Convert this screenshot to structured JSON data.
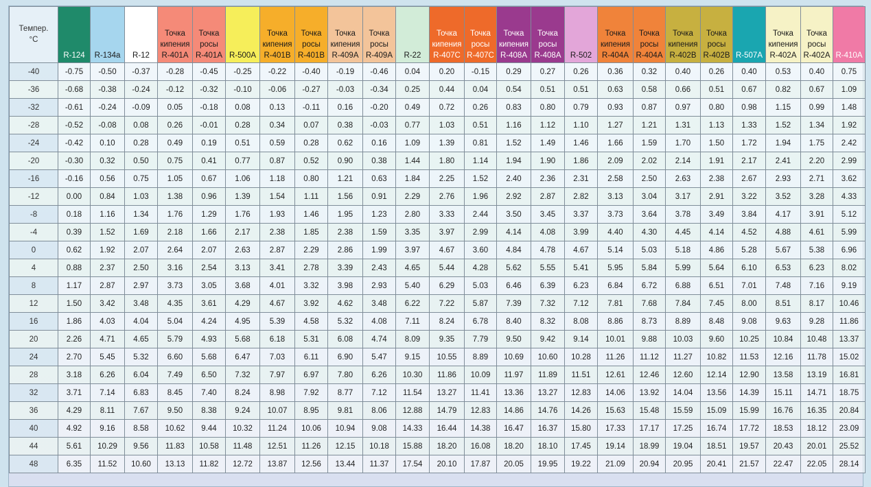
{
  "table": {
    "temp_header": "Темпер.\n°C",
    "columns": [
      {
        "label": "R-124",
        "color": "#1f8a6a",
        "dark": true
      },
      {
        "label": "R-134a",
        "color": "#a6d6ee",
        "dark": false
      },
      {
        "label": "R-12",
        "color": "#ffffff",
        "dark": false
      },
      {
        "label": "Точка\nкипения\nR-401A",
        "color": "#f58a78",
        "dark": false
      },
      {
        "label": "Точка\nросы\nR-401A",
        "color": "#f58a78",
        "dark": false
      },
      {
        "label": "R-500A",
        "color": "#f6ee5a",
        "dark": false
      },
      {
        "label": "Точка\nкипения\nR-401B",
        "color": "#f6ae2a",
        "dark": false
      },
      {
        "label": "Точка\nросы\nR-401B",
        "color": "#f6ae2a",
        "dark": false
      },
      {
        "label": "Точка\nкипения\nR-409A",
        "color": "#f3c49a",
        "dark": false
      },
      {
        "label": "Точка\nросы\nR-409A",
        "color": "#f3c49a",
        "dark": false
      },
      {
        "label": "R-22",
        "color": "#d2ecd8",
        "dark": false
      },
      {
        "label": "Точка\nкипения\nR-407C",
        "color": "#ee6a2a",
        "dark": true
      },
      {
        "label": "Точка\nросы\nR-407C",
        "color": "#ee6a2a",
        "dark": true
      },
      {
        "label": "Точка\nкипения\nR-408A",
        "color": "#9a3a8e",
        "dark": true
      },
      {
        "label": "Точка\nросы\nR-408A",
        "color": "#9a3a8e",
        "dark": true
      },
      {
        "label": "R-502",
        "color": "#e3a6d9",
        "dark": false
      },
      {
        "label": "Точка\nкипения\nR-404A",
        "color": "#f0833a",
        "dark": false
      },
      {
        "label": "Точка\nросы\nR-404A",
        "color": "#f0833a",
        "dark": false
      },
      {
        "label": "Точка\nкипения\nR-402B",
        "color": "#c7b040",
        "dark": false
      },
      {
        "label": "Точка\nросы\nR-402B",
        "color": "#c7b040",
        "dark": false
      },
      {
        "label": "R-507A",
        "color": "#1aa6b0",
        "dark": true
      },
      {
        "label": "Точка\nкипения\nR-402A",
        "color": "#f6f2c6",
        "dark": false
      },
      {
        "label": "Точка\nросы\nR-402A",
        "color": "#f6f2c6",
        "dark": false
      },
      {
        "label": "R-410A",
        "color": "#f07aa6",
        "dark": true
      }
    ],
    "rows": [
      {
        "t": "-40",
        "v": [
          "-0.75",
          "-0.50",
          "-0.37",
          "-0.28",
          "-0.45",
          "-0.25",
          "-0.22",
          "-0.40",
          "-0.19",
          "-0.46",
          "0.04",
          "0.20",
          "-0.15",
          "0.29",
          "0.27",
          "0.26",
          "0.36",
          "0.32",
          "0.40",
          "0.26",
          "0.40",
          "0.53",
          "0.40",
          "0.75"
        ]
      },
      {
        "t": "-36",
        "v": [
          "-0.68",
          "-0.38",
          "-0.24",
          "-0.12",
          "-0.32",
          "-0.10",
          "-0.06",
          "-0.27",
          "-0.03",
          "-0.34",
          "0.25",
          "0.44",
          "0.04",
          "0.54",
          "0.51",
          "0.51",
          "0.63",
          "0.58",
          "0.66",
          "0.51",
          "0.67",
          "0.82",
          "0.67",
          "1.09"
        ]
      },
      {
        "t": "-32",
        "v": [
          "-0.61",
          "-0.24",
          "-0.09",
          "0.05",
          "-0.18",
          "0.08",
          "0.13",
          "-0.11",
          "0.16",
          "-0.20",
          "0.49",
          "0.72",
          "0.26",
          "0.83",
          "0.80",
          "0.79",
          "0.93",
          "0.87",
          "0.97",
          "0.80",
          "0.98",
          "1.15",
          "0.99",
          "1.48"
        ]
      },
      {
        "t": "-28",
        "v": [
          "-0.52",
          "-0.08",
          "0.08",
          "0.26",
          "-0.01",
          "0.28",
          "0.34",
          "0.07",
          "0.38",
          "-0.03",
          "0.77",
          "1.03",
          "0.51",
          "1.16",
          "1.12",
          "1.10",
          "1.27",
          "1.21",
          "1.31",
          "1.13",
          "1.33",
          "1.52",
          "1.34",
          "1.92"
        ]
      },
      {
        "t": "-24",
        "v": [
          "-0.42",
          "0.10",
          "0.28",
          "0.49",
          "0.19",
          "0.51",
          "0.59",
          "0.28",
          "0.62",
          "0.16",
          "1.09",
          "1.39",
          "0.81",
          "1.52",
          "1.49",
          "1.46",
          "1.66",
          "1.59",
          "1.70",
          "1.50",
          "1.72",
          "1.94",
          "1.75",
          "2.42"
        ]
      },
      {
        "t": "-20",
        "v": [
          "-0.30",
          "0.32",
          "0.50",
          "0.75",
          "0.41",
          "0.77",
          "0.87",
          "0.52",
          "0.90",
          "0.38",
          "1.44",
          "1.80",
          "1.14",
          "1.94",
          "1.90",
          "1.86",
          "2.09",
          "2.02",
          "2.14",
          "1.91",
          "2.17",
          "2.41",
          "2.20",
          "2.99"
        ]
      },
      {
        "t": "-16",
        "v": [
          "-0.16",
          "0.56",
          "0.75",
          "1.05",
          "0.67",
          "1.06",
          "1.18",
          "0.80",
          "1.21",
          "0.63",
          "1.84",
          "2.25",
          "1.52",
          "2.40",
          "2.36",
          "2.31",
          "2.58",
          "2.50",
          "2.63",
          "2.38",
          "2.67",
          "2.93",
          "2.71",
          "3.62"
        ]
      },
      {
        "t": "-12",
        "v": [
          "0.00",
          "0.84",
          "1.03",
          "1.38",
          "0.96",
          "1.39",
          "1.54",
          "1.11",
          "1.56",
          "0.91",
          "2.29",
          "2.76",
          "1.96",
          "2.92",
          "2.87",
          "2.82",
          "3.13",
          "3.04",
          "3.17",
          "2.91",
          "3.22",
          "3.52",
          "3.28",
          "4.33"
        ]
      },
      {
        "t": "-8",
        "v": [
          "0.18",
          "1.16",
          "1.34",
          "1.76",
          "1.29",
          "1.76",
          "1.93",
          "1.46",
          "1.95",
          "1.23",
          "2.80",
          "3.33",
          "2.44",
          "3.50",
          "3.45",
          "3.37",
          "3.73",
          "3.64",
          "3.78",
          "3.49",
          "3.84",
          "4.17",
          "3.91",
          "5.12"
        ]
      },
      {
        "t": "-4",
        "v": [
          "0.39",
          "1.52",
          "1.69",
          "2.18",
          "1.66",
          "2.17",
          "2.38",
          "1.85",
          "2.38",
          "1.59",
          "3.35",
          "3.97",
          "2.99",
          "4.14",
          "4.08",
          "3.99",
          "4.40",
          "4.30",
          "4.45",
          "4.14",
          "4.52",
          "4.88",
          "4.61",
          "5.99"
        ]
      },
      {
        "t": "0",
        "v": [
          "0.62",
          "1.92",
          "2.07",
          "2.64",
          "2.07",
          "2.63",
          "2.87",
          "2.29",
          "2.86",
          "1.99",
          "3.97",
          "4.67",
          "3.60",
          "4.84",
          "4.78",
          "4.67",
          "5.14",
          "5.03",
          "5.18",
          "4.86",
          "5.28",
          "5.67",
          "5.38",
          "6.96"
        ]
      },
      {
        "t": "4",
        "v": [
          "0.88",
          "2.37",
          "2.50",
          "3.16",
          "2.54",
          "3.13",
          "3.41",
          "2.78",
          "3.39",
          "2.43",
          "4.65",
          "5.44",
          "4.28",
          "5.62",
          "5.55",
          "5.41",
          "5.95",
          "5.84",
          "5.99",
          "5.64",
          "6.10",
          "6.53",
          "6.23",
          "8.02"
        ]
      },
      {
        "t": "8",
        "v": [
          "1.17",
          "2.87",
          "2.97",
          "3.73",
          "3.05",
          "3.68",
          "4.01",
          "3.32",
          "3.98",
          "2.93",
          "5.40",
          "6.29",
          "5.03",
          "6.46",
          "6.39",
          "6.23",
          "6.84",
          "6.72",
          "6.88",
          "6.51",
          "7.01",
          "7.48",
          "7.16",
          "9.19"
        ]
      },
      {
        "t": "12",
        "v": [
          "1.50",
          "3.42",
          "3.48",
          "4.35",
          "3.61",
          "4.29",
          "4.67",
          "3.92",
          "4.62",
          "3.48",
          "6.22",
          "7.22",
          "5.87",
          "7.39",
          "7.32",
          "7.12",
          "7.81",
          "7.68",
          "7.84",
          "7.45",
          "8.00",
          "8.51",
          "8.17",
          "10.46"
        ]
      },
      {
        "t": "16",
        "v": [
          "1.86",
          "4.03",
          "4.04",
          "5.04",
          "4.24",
          "4.95",
          "5.39",
          "4.58",
          "5.32",
          "4.08",
          "7.11",
          "8.24",
          "6.78",
          "8.40",
          "8.32",
          "8.08",
          "8.86",
          "8.73",
          "8.89",
          "8.48",
          "9.08",
          "9.63",
          "9.28",
          "11.86"
        ]
      },
      {
        "t": "20",
        "v": [
          "2.26",
          "4.71",
          "4.65",
          "5.79",
          "4.93",
          "5.68",
          "6.18",
          "5.31",
          "6.08",
          "4.74",
          "8.09",
          "9.35",
          "7.79",
          "9.50",
          "9.42",
          "9.14",
          "10.01",
          "9.88",
          "10.03",
          "9.60",
          "10.25",
          "10.84",
          "10.48",
          "13.37"
        ]
      },
      {
        "t": "24",
        "v": [
          "2.70",
          "5.45",
          "5.32",
          "6.60",
          "5.68",
          "6.47",
          "7.03",
          "6.11",
          "6.90",
          "5.47",
          "9.15",
          "10.55",
          "8.89",
          "10.69",
          "10.60",
          "10.28",
          "11.26",
          "11.12",
          "11.27",
          "10.82",
          "11.53",
          "12.16",
          "11.78",
          "15.02"
        ]
      },
      {
        "t": "28",
        "v": [
          "3.18",
          "6.26",
          "6.04",
          "7.49",
          "6.50",
          "7.32",
          "7.97",
          "6.97",
          "7.80",
          "6.26",
          "10.30",
          "11.86",
          "10.09",
          "11.97",
          "11.89",
          "11.51",
          "12.61",
          "12.46",
          "12.60",
          "12.14",
          "12.90",
          "13.58",
          "13.19",
          "16.81"
        ]
      },
      {
        "t": "32",
        "v": [
          "3.71",
          "7.14",
          "6.83",
          "8.45",
          "7.40",
          "8.24",
          "8.98",
          "7.92",
          "8.77",
          "7.12",
          "11.54",
          "13.27",
          "11.41",
          "13.36",
          "13.27",
          "12.83",
          "14.06",
          "13.92",
          "14.04",
          "13.56",
          "14.39",
          "15.11",
          "14.71",
          "18.75"
        ]
      },
      {
        "t": "36",
        "v": [
          "4.29",
          "8.11",
          "7.67",
          "9.50",
          "8.38",
          "9.24",
          "10.07",
          "8.95",
          "9.81",
          "8.06",
          "12.88",
          "14.79",
          "12.83",
          "14.86",
          "14.76",
          "14.26",
          "15.63",
          "15.48",
          "15.59",
          "15.09",
          "15.99",
          "16.76",
          "16.35",
          "20.84"
        ]
      },
      {
        "t": "40",
        "v": [
          "4.92",
          "9.16",
          "8.58",
          "10.62",
          "9.44",
          "10.32",
          "11.24",
          "10.06",
          "10.94",
          "9.08",
          "14.33",
          "16.44",
          "14.38",
          "16.47",
          "16.37",
          "15.80",
          "17.33",
          "17.17",
          "17.25",
          "16.74",
          "17.72",
          "18.53",
          "18.12",
          "23.09"
        ]
      },
      {
        "t": "44",
        "v": [
          "5.61",
          "10.29",
          "9.56",
          "11.83",
          "10.58",
          "11.48",
          "12.51",
          "11.26",
          "12.15",
          "10.18",
          "15.88",
          "18.20",
          "16.08",
          "18.20",
          "18.10",
          "17.45",
          "19.14",
          "18.99",
          "19.04",
          "18.51",
          "19.57",
          "20.43",
          "20.01",
          "25.52"
        ]
      },
      {
        "t": "48",
        "v": [
          "6.35",
          "11.52",
          "10.60",
          "13.13",
          "11.82",
          "12.72",
          "13.87",
          "12.56",
          "13.44",
          "11.37",
          "17.54",
          "20.10",
          "17.87",
          "20.05",
          "19.95",
          "19.22",
          "21.09",
          "20.94",
          "20.95",
          "20.41",
          "21.57",
          "22.47",
          "22.05",
          "28.14"
        ]
      }
    ]
  }
}
